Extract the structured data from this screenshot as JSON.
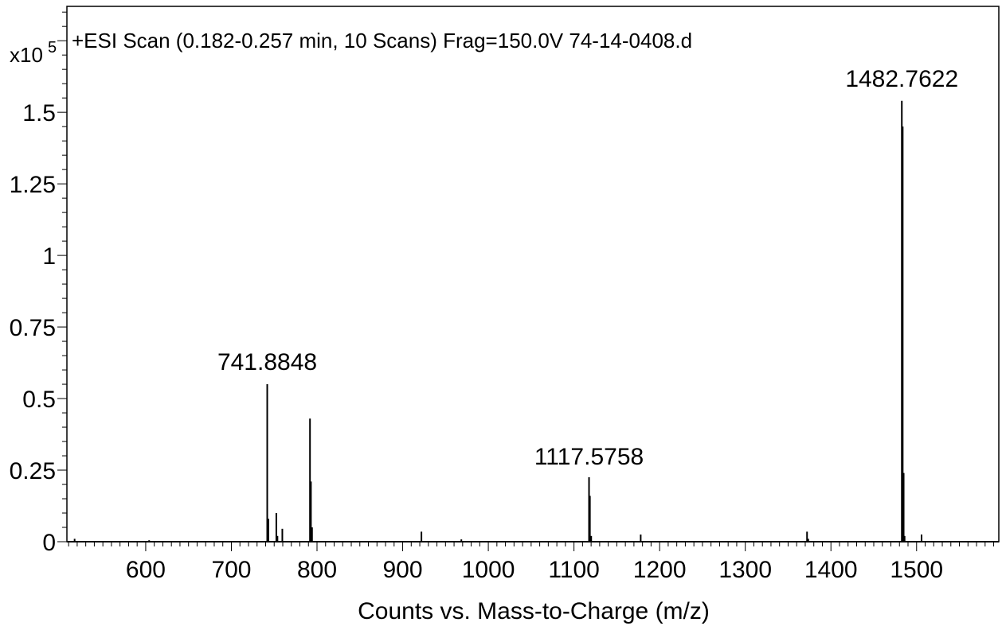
{
  "chart_data": {
    "type": "bar",
    "title": "+ESI Scan (0.182-0.257 min, 10 Scans) Frag=150.0V 74-14-0408.d",
    "xlabel": "Counts vs. Mass-to-Charge (m/z)",
    "ylabel": "",
    "y_multiplier": {
      "base": "x10",
      "exponent": "5"
    },
    "xlim": [
      508,
      1596
    ],
    "ylim": [
      0,
      1.87
    ],
    "x_ticks": [
      600,
      700,
      800,
      900,
      1000,
      1100,
      1200,
      1300,
      1400,
      1500
    ],
    "y_ticks": [
      0,
      0.25,
      0.5,
      0.75,
      1,
      1.25,
      1.5
    ],
    "y_tick_labels": [
      "0",
      "0.25",
      "0.5",
      "0.75",
      "1",
      "1.25",
      "1.5"
    ],
    "grid": false,
    "peak_labels": [
      {
        "x": 741.8848,
        "y": 0.55,
        "text": "741.8848"
      },
      {
        "x": 1117.5758,
        "y": 0.22,
        "text": "1117.5758"
      },
      {
        "x": 1482.7622,
        "y": 1.54,
        "text": "1482.7622"
      }
    ],
    "series": [
      {
        "x": [
          517,
          604,
          741.8848,
          743.2,
          752.5,
          753.8,
          759.5,
          791.8,
          792.9,
          794.2,
          921.9,
          968.5,
          1117.5758,
          1118.6,
          1120.1,
          1177.9,
          1372.1,
          1373.5,
          1482.7622,
          1483.8,
          1484.9,
          1486.0,
          1505.8
        ],
        "values": [
          0.01,
          0.005,
          0.55,
          0.08,
          0.1,
          0.02,
          0.045,
          0.43,
          0.21,
          0.05,
          0.035,
          0.008,
          0.225,
          0.16,
          0.02,
          0.025,
          0.035,
          0.01,
          1.54,
          1.45,
          0.24,
          0.02,
          0.025
        ]
      }
    ]
  }
}
